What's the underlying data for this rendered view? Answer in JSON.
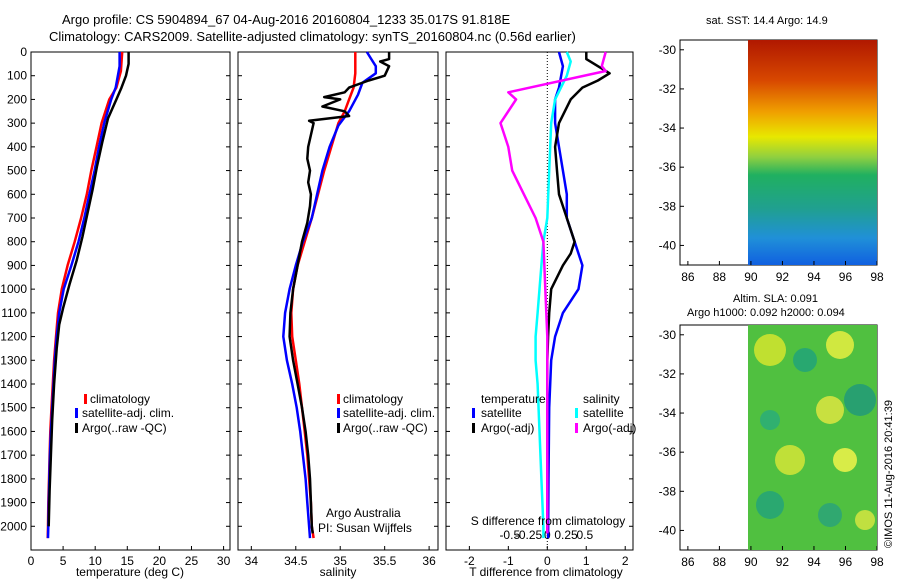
{
  "header": {
    "line1": "Argo profile: CS 5904894_67 04-Aug-2016 20160804_1233 35.017S 91.818E",
    "line2": "Climatology: CARS2009. Satellite-adjusted climatology: synTS_20160804.nc (0.56d earlier)"
  },
  "credit": "©IMOS 11-Aug-2016 20:41:39",
  "colors": {
    "climatology": "#ff0000",
    "satellite": "#0000ff",
    "argo": "#000000",
    "sal_satellite": "#00ffff",
    "sal_argo": "#ff00ff"
  },
  "chart_data": [
    {
      "type": "line",
      "id": "temperature",
      "xlabel": "temperature (deg C)",
      "ylabel": "",
      "xlim": [
        0,
        31
      ],
      "ylim": [
        2100,
        0
      ],
      "xticks": [
        0,
        5,
        10,
        15,
        20,
        25,
        30
      ],
      "yticks": [
        0,
        100,
        200,
        300,
        400,
        500,
        600,
        700,
        800,
        900,
        1000,
        1100,
        1200,
        1300,
        1400,
        1500,
        1600,
        1700,
        1800,
        1900,
        2000
      ],
      "legend": [
        "climatology",
        "satellite-adj. clim.",
        "Argo(..raw -QC)"
      ],
      "series": [
        {
          "name": "climatology",
          "color": "#ff0000",
          "points": [
            [
              14.2,
              0
            ],
            [
              14.0,
              80
            ],
            [
              13.3,
              150
            ],
            [
              12.2,
              200
            ],
            [
              11.0,
              300
            ],
            [
              10.2,
              400
            ],
            [
              9.4,
              500
            ],
            [
              8.7,
              600
            ],
            [
              7.8,
              700
            ],
            [
              6.8,
              800
            ],
            [
              5.7,
              900
            ],
            [
              4.8,
              1000
            ],
            [
              4.2,
              1100
            ],
            [
              3.9,
              1200
            ],
            [
              3.6,
              1300
            ],
            [
              3.4,
              1400
            ],
            [
              3.2,
              1500
            ],
            [
              3.0,
              1600
            ],
            [
              2.9,
              1700
            ],
            [
              2.8,
              1800
            ],
            [
              2.7,
              1900
            ],
            [
              2.65,
              2000
            ],
            [
              2.6,
              2050
            ]
          ]
        },
        {
          "name": "satellite-adj. clim.",
          "color": "#0000ff",
          "points": [
            [
              13.8,
              0
            ],
            [
              13.8,
              60
            ],
            [
              13.2,
              150
            ],
            [
              12.5,
              200
            ],
            [
              11.4,
              300
            ],
            [
              10.6,
              400
            ],
            [
              9.9,
              500
            ],
            [
              9.1,
              600
            ],
            [
              8.3,
              700
            ],
            [
              7.4,
              800
            ],
            [
              6.3,
              900
            ],
            [
              5.1,
              1000
            ],
            [
              4.4,
              1100
            ],
            [
              4.0,
              1200
            ],
            [
              3.7,
              1300
            ],
            [
              3.5,
              1400
            ],
            [
              3.3,
              1500
            ],
            [
              3.1,
              1600
            ],
            [
              2.95,
              1700
            ],
            [
              2.85,
              1800
            ],
            [
              2.75,
              1900
            ],
            [
              2.7,
              2000
            ],
            [
              2.65,
              2050
            ]
          ]
        },
        {
          "name": "Argo(..raw -QC)",
          "color": "#000000",
          "points": [
            [
              15.2,
              0
            ],
            [
              15.2,
              50
            ],
            [
              14.8,
              100
            ],
            [
              14.1,
              150
            ],
            [
              13.3,
              200
            ],
            [
              12.0,
              280
            ],
            [
              11.1,
              380
            ],
            [
              10.3,
              480
            ],
            [
              9.6,
              580
            ],
            [
              8.8,
              680
            ],
            [
              8.0,
              780
            ],
            [
              7.1,
              880
            ],
            [
              6.0,
              980
            ],
            [
              5.0,
              1080
            ],
            [
              4.4,
              1150
            ],
            [
              4.0,
              1250
            ],
            [
              3.6,
              1400
            ],
            [
              3.3,
              1550
            ],
            [
              3.1,
              1700
            ],
            [
              2.9,
              1850
            ],
            [
              2.8,
              1950
            ],
            [
              2.75,
              2000
            ]
          ]
        }
      ]
    },
    {
      "type": "line",
      "id": "salinity",
      "xlabel": "salinity",
      "xlim": [
        33.85,
        36.1
      ],
      "ylim": [
        2100,
        0
      ],
      "xticks": [
        34,
        34.5,
        35,
        35.5,
        36
      ],
      "legend": [
        "climatology",
        "satellite-adj. clim.",
        "Argo(..raw -QC)"
      ],
      "annotation": [
        "Argo Australia",
        "PI: Susan Wijffels"
      ],
      "series": [
        {
          "name": "climatology",
          "color": "#ff0000",
          "points": [
            [
              35.17,
              0
            ],
            [
              35.17,
              90
            ],
            [
              35.15,
              150
            ],
            [
              35.1,
              200
            ],
            [
              35.05,
              250
            ],
            [
              34.98,
              300
            ],
            [
              34.9,
              400
            ],
            [
              34.82,
              500
            ],
            [
              34.75,
              600
            ],
            [
              34.68,
              700
            ],
            [
              34.6,
              800
            ],
            [
              34.52,
              900
            ],
            [
              34.47,
              1000
            ],
            [
              34.45,
              1100
            ],
            [
              34.46,
              1200
            ],
            [
              34.5,
              1300
            ],
            [
              34.54,
              1400
            ],
            [
              34.57,
              1500
            ],
            [
              34.6,
              1600
            ],
            [
              34.63,
              1700
            ],
            [
              34.65,
              1800
            ],
            [
              34.67,
              1900
            ],
            [
              34.68,
              2000
            ],
            [
              34.7,
              2050
            ]
          ]
        },
        {
          "name": "satellite-adj. clim.",
          "color": "#0000ff",
          "points": [
            [
              35.3,
              0
            ],
            [
              35.35,
              30
            ],
            [
              35.4,
              60
            ],
            [
              35.4,
              90
            ],
            [
              35.25,
              130
            ],
            [
              35.2,
              180
            ],
            [
              35.1,
              250
            ],
            [
              34.98,
              310
            ],
            [
              34.88,
              400
            ],
            [
              34.8,
              500
            ],
            [
              34.74,
              600
            ],
            [
              34.68,
              700
            ],
            [
              34.58,
              800
            ],
            [
              34.5,
              900
            ],
            [
              34.43,
              1000
            ],
            [
              34.38,
              1100
            ],
            [
              34.36,
              1200
            ],
            [
              34.4,
              1300
            ],
            [
              34.46,
              1400
            ],
            [
              34.51,
              1500
            ],
            [
              34.55,
              1600
            ],
            [
              34.58,
              1700
            ],
            [
              34.61,
              1800
            ],
            [
              34.63,
              1900
            ],
            [
              34.65,
              2000
            ],
            [
              34.66,
              2050
            ]
          ]
        },
        {
          "name": "Argo(..raw -QC)",
          "color": "#000000",
          "points": [
            [
              35.55,
              0
            ],
            [
              35.55,
              30
            ],
            [
              35.45,
              40
            ],
            [
              35.55,
              60
            ],
            [
              35.5,
              100
            ],
            [
              35.32,
              120
            ],
            [
              35.1,
              150
            ],
            [
              35.05,
              170
            ],
            [
              34.82,
              190
            ],
            [
              35.0,
              200
            ],
            [
              34.8,
              230
            ],
            [
              35.05,
              250
            ],
            [
              35.1,
              270
            ],
            [
              34.65,
              290
            ],
            [
              34.7,
              300
            ],
            [
              34.67,
              350
            ],
            [
              34.64,
              400
            ],
            [
              34.63,
              450
            ],
            [
              34.66,
              500
            ],
            [
              34.64,
              550
            ],
            [
              34.67,
              600
            ],
            [
              34.66,
              650
            ],
            [
              34.63,
              720
            ],
            [
              34.57,
              800
            ],
            [
              34.52,
              900
            ],
            [
              34.47,
              1000
            ],
            [
              34.44,
              1100
            ],
            [
              34.43,
              1200
            ],
            [
              34.47,
              1300
            ],
            [
              34.52,
              1400
            ],
            [
              34.57,
              1500
            ],
            [
              34.61,
              1600
            ],
            [
              34.64,
              1700
            ],
            [
              34.66,
              1800
            ],
            [
              34.67,
              1900
            ],
            [
              34.68,
              2000
            ],
            [
              34.69,
              2030
            ]
          ]
        }
      ]
    },
    {
      "type": "line",
      "id": "difference",
      "xlabel": "T difference from climatology",
      "xlabel_top": "S difference from climatology",
      "xlim": [
        -2.6,
        2.2
      ],
      "ylim": [
        2100,
        0
      ],
      "xticks": [
        -2,
        -1,
        0,
        1,
        2
      ],
      "sticks": [
        "-0.5",
        "-0.25",
        "0",
        "0.25",
        "0.5"
      ],
      "legend_titles": [
        "temperature",
        "salinity"
      ],
      "legend": [
        "satellite",
        "Argo(-adj)",
        "satellite",
        "Argo(-adj)"
      ],
      "series": [
        {
          "name": "temperature satellite",
          "color": "#0000ff",
          "points": [
            [
              0.3,
              0
            ],
            [
              0.4,
              60
            ],
            [
              0.3,
              150
            ],
            [
              0.2,
              200
            ],
            [
              0.2,
              300
            ],
            [
              0.3,
              400
            ],
            [
              0.4,
              500
            ],
            [
              0.5,
              600
            ],
            [
              0.5,
              700
            ],
            [
              0.7,
              800
            ],
            [
              0.9,
              900
            ],
            [
              0.8,
              1000
            ],
            [
              0.4,
              1100
            ],
            [
              0.2,
              1200
            ],
            [
              0.1,
              1300
            ],
            [
              0.05,
              1500
            ],
            [
              0.03,
              1800
            ],
            [
              0.02,
              2050
            ]
          ]
        },
        {
          "name": "temperature Argo(-adj)",
          "color": "#000000",
          "points": [
            [
              1.0,
              0
            ],
            [
              1.0,
              30
            ],
            [
              1.6,
              90
            ],
            [
              1.3,
              120
            ],
            [
              0.9,
              150
            ],
            [
              0.6,
              200
            ],
            [
              0.3,
              300
            ],
            [
              0.2,
              400
            ],
            [
              0.25,
              500
            ],
            [
              0.3,
              600
            ],
            [
              0.5,
              700
            ],
            [
              0.7,
              800
            ],
            [
              0.6,
              850
            ],
            [
              0.4,
              900
            ],
            [
              0.1,
              1000
            ],
            [
              0.05,
              1100
            ],
            [
              0.02,
              1200
            ],
            [
              0.0,
              1300
            ],
            [
              0.0,
              1600
            ],
            [
              0.0,
              1900
            ],
            [
              0.0,
              2030
            ]
          ]
        },
        {
          "name": "salinity satellite",
          "color": "#00ffff",
          "points": [
            [
              0.5,
              0
            ],
            [
              0.6,
              40
            ],
            [
              0.5,
              100
            ],
            [
              0.2,
              200
            ],
            [
              0.1,
              300
            ],
            [
              0.05,
              500
            ],
            [
              0.0,
              700
            ],
            [
              -0.1,
              800
            ],
            [
              -0.15,
              900
            ],
            [
              -0.2,
              1000
            ],
            [
              -0.25,
              1100
            ],
            [
              -0.3,
              1200
            ],
            [
              -0.3,
              1300
            ],
            [
              -0.25,
              1400
            ],
            [
              -0.2,
              1600
            ],
            [
              -0.15,
              1800
            ],
            [
              -0.1,
              2000
            ],
            [
              -0.1,
              2050
            ]
          ]
        },
        {
          "name": "salinity Argo(-adj)",
          "color": "#ff00ff",
          "points": [
            [
              1.5,
              0
            ],
            [
              1.4,
              60
            ],
            [
              1.5,
              80
            ],
            [
              -1.0,
              170
            ],
            [
              -0.8,
              200
            ],
            [
              -1.2,
              300
            ],
            [
              -1.0,
              400
            ],
            [
              -0.9,
              500
            ],
            [
              -0.6,
              600
            ],
            [
              -0.3,
              700
            ],
            [
              -0.1,
              800
            ],
            [
              -0.05,
              1000
            ],
            [
              0.0,
              1200
            ],
            [
              0.0,
              1600
            ],
            [
              0.0,
              2030
            ]
          ]
        }
      ]
    },
    {
      "type": "heatmap",
      "id": "sst-map",
      "title": "sat. SST: 14.4  Argo: 14.9",
      "xlim": [
        85.5,
        98
      ],
      "ylim": [
        -41,
        -29.5
      ],
      "xticks": [
        86,
        88,
        90,
        92,
        94,
        96,
        98
      ],
      "yticks": [
        -30,
        -32,
        -34,
        -36,
        -38,
        -40
      ],
      "data_xstart": 90
    },
    {
      "type": "heatmap",
      "id": "sla-map",
      "title": "Altim. SLA: 0.091",
      "subtitle": "Argo h1000: 0.092 h2000: 0.094",
      "xlim": [
        85.5,
        98
      ],
      "ylim": [
        -41,
        -29.5
      ],
      "xticks": [
        86,
        88,
        90,
        92,
        94,
        96,
        98
      ],
      "yticks": [
        -30,
        -32,
        -34,
        -36,
        -38,
        -40
      ],
      "data_xstart": 90
    }
  ]
}
